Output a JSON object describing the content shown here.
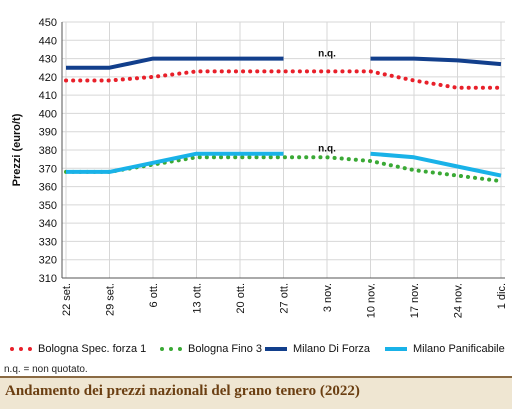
{
  "chart_data": {
    "type": "line",
    "ylabel": "Prezzi (euro/t)",
    "ylim": [
      310,
      450
    ],
    "yticks": [
      310,
      320,
      330,
      340,
      350,
      360,
      370,
      380,
      390,
      400,
      410,
      420,
      430,
      440,
      450
    ],
    "categories": [
      "22 set.",
      "29 set.",
      "6 ott.",
      "13 ott.",
      "20 ott.",
      "27 ott.",
      "3 nov.",
      "10 nov.",
      "17 nov.",
      "24 nov.",
      "1 dic."
    ],
    "gap_annotation": "n.q.",
    "series": [
      {
        "name": "Bologna Spec. forza 1",
        "color": "#e8202a",
        "style": "dotted",
        "values": [
          418,
          418,
          420,
          423,
          423,
          423,
          423,
          423,
          418,
          414,
          414
        ]
      },
      {
        "name": "Bologna Fino 3",
        "color": "#3aa935",
        "style": "dotted",
        "values": [
          368,
          368,
          372,
          376,
          376,
          376,
          376,
          374,
          369,
          366,
          363
        ]
      },
      {
        "name": "Milano Di Forza",
        "color": "#123f8c",
        "style": "solid",
        "values": [
          425,
          425,
          430,
          430,
          430,
          430,
          null,
          430,
          430,
          429,
          427
        ]
      },
      {
        "name": "Milano Panificabile",
        "color": "#19b2e8",
        "style": "solid",
        "values": [
          368,
          368,
          373,
          378,
          378,
          378,
          null,
          378,
          376,
          371,
          366
        ]
      }
    ]
  },
  "note": "n.q. = non quotato.",
  "footer_title": "Andamento dei prezzi nazionali del grano tenero (2022)"
}
